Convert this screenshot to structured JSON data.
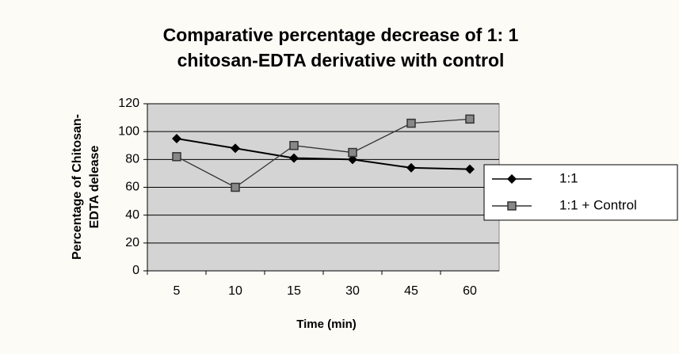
{
  "chart_data": {
    "type": "line",
    "title": [
      "Comparative percentage decrease of 1: 1",
      "chitosan-EDTA derivative with control"
    ],
    "ylabel": [
      "Percentage of Chitosan-",
      "EDTA delease"
    ],
    "xlabel": "Time (min)",
    "categories": [
      "5",
      "10",
      "15",
      "30",
      "45",
      "60"
    ],
    "series": [
      {
        "name": "1:1",
        "color": "#000000",
        "marker": "diamond",
        "values": [
          95,
          88,
          81,
          80,
          74,
          73
        ]
      },
      {
        "name": "1:1 + Control",
        "color": "#333333",
        "marker": "square",
        "values": [
          82,
          60,
          90,
          85,
          106,
          109
        ]
      }
    ],
    "ylim": [
      0,
      120
    ],
    "yticks": [
      0,
      20,
      40,
      60,
      80,
      100,
      120
    ],
    "grid": true,
    "legend": "right"
  }
}
